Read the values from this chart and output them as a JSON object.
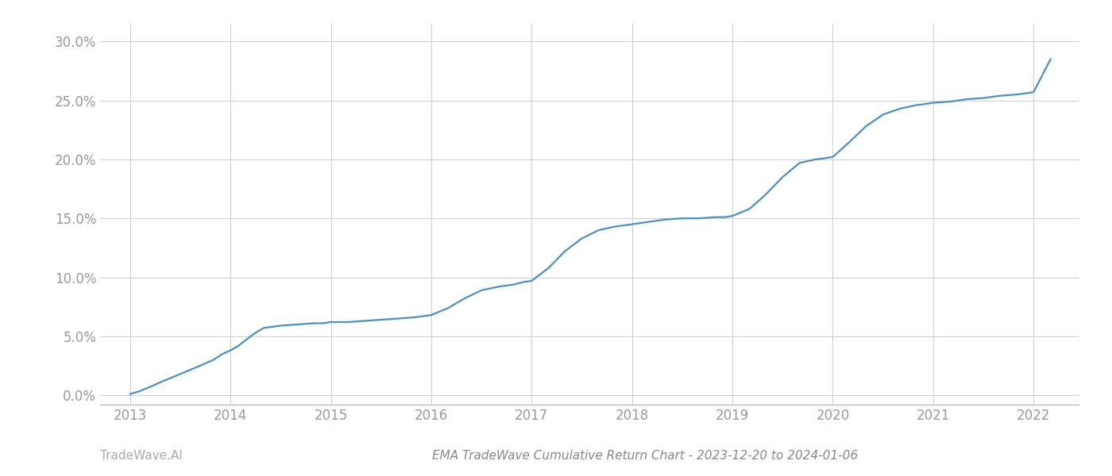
{
  "title": "EMA TradeWave Cumulative Return Chart - 2023-12-20 to 2024-01-06",
  "watermark": "TradeWave.AI",
  "line_color": "#4a90c4",
  "background_color": "#ffffff",
  "grid_color": "#d0d0d0",
  "x_values": [
    2013.0,
    2013.08,
    2013.17,
    2013.33,
    2013.5,
    2013.67,
    2013.83,
    2013.92,
    2014.0,
    2014.08,
    2014.17,
    2014.25,
    2014.33,
    2014.5,
    2014.67,
    2014.83,
    2014.92,
    2015.0,
    2015.17,
    2015.33,
    2015.5,
    2015.67,
    2015.83,
    2015.92,
    2016.0,
    2016.17,
    2016.33,
    2016.5,
    2016.67,
    2016.83,
    2016.92,
    2017.0,
    2017.17,
    2017.33,
    2017.5,
    2017.67,
    2017.83,
    2017.92,
    2018.0,
    2018.17,
    2018.33,
    2018.5,
    2018.67,
    2018.83,
    2018.92,
    2019.0,
    2019.17,
    2019.33,
    2019.5,
    2019.67,
    2019.83,
    2019.92,
    2020.0,
    2020.17,
    2020.33,
    2020.5,
    2020.67,
    2020.83,
    2020.92,
    2021.0,
    2021.17,
    2021.33,
    2021.5,
    2021.67,
    2021.83,
    2021.92,
    2022.0,
    2022.08,
    2022.17
  ],
  "y_values": [
    0.001,
    0.003,
    0.006,
    0.012,
    0.018,
    0.024,
    0.03,
    0.035,
    0.038,
    0.042,
    0.048,
    0.053,
    0.057,
    0.059,
    0.06,
    0.061,
    0.061,
    0.062,
    0.062,
    0.063,
    0.064,
    0.065,
    0.066,
    0.067,
    0.068,
    0.074,
    0.082,
    0.089,
    0.092,
    0.094,
    0.096,
    0.097,
    0.108,
    0.122,
    0.133,
    0.14,
    0.143,
    0.144,
    0.145,
    0.147,
    0.149,
    0.15,
    0.15,
    0.151,
    0.151,
    0.152,
    0.158,
    0.17,
    0.185,
    0.197,
    0.2,
    0.201,
    0.202,
    0.215,
    0.228,
    0.238,
    0.243,
    0.246,
    0.247,
    0.248,
    0.249,
    0.251,
    0.252,
    0.254,
    0.255,
    0.256,
    0.257,
    0.27,
    0.285
  ],
  "xlim": [
    2012.7,
    2022.45
  ],
  "ylim": [
    -0.008,
    0.315
  ],
  "yticks": [
    0.0,
    0.05,
    0.1,
    0.15,
    0.2,
    0.25,
    0.3
  ],
  "xticks": [
    2013,
    2014,
    2015,
    2016,
    2017,
    2018,
    2019,
    2020,
    2021,
    2022
  ],
  "line_width": 1.6,
  "tick_fontsize": 12,
  "tick_color": "#999999",
  "spine_color": "#bbbbbb",
  "title_fontsize": 11,
  "title_color": "#888888",
  "watermark_color": "#aaaaaa",
  "watermark_fontsize": 11
}
